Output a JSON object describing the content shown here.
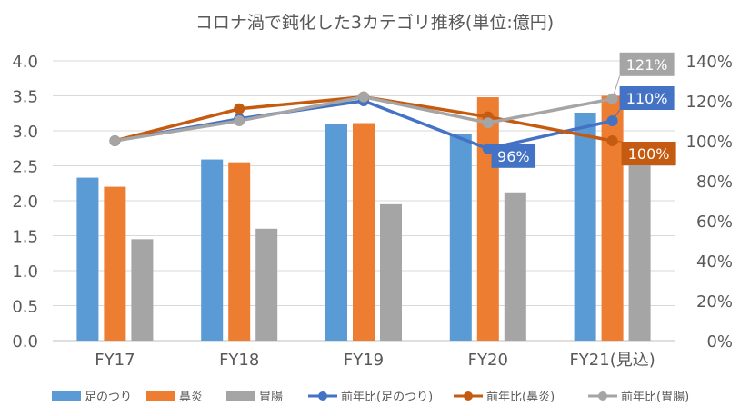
{
  "chart_data": {
    "type": "bar",
    "title": "コロナ渦で鈍化した3カテゴリ推移(単位:億円)",
    "categories": [
      "FY17",
      "FY18",
      "FY19",
      "FY20",
      "FY21(見込)"
    ],
    "ylim": [
      0,
      4.0
    ],
    "y_ticks": [
      "0.0",
      "0.5",
      "1.0",
      "1.5",
      "2.0",
      "2.5",
      "3.0",
      "3.5",
      "4.0"
    ],
    "y2lim": [
      0,
      140
    ],
    "y2_ticks": [
      "0%",
      "20%",
      "40%",
      "60%",
      "80%",
      "100%",
      "120%",
      "140%"
    ],
    "grid": true,
    "legend_position": "bottom",
    "bar_series": [
      {
        "name": "足のつり",
        "color": "#5b9bd5",
        "values": [
          2.33,
          2.59,
          3.1,
          2.96,
          3.26
        ]
      },
      {
        "name": "鼻炎",
        "color": "#ed7d31",
        "values": [
          2.2,
          2.55,
          3.11,
          3.48,
          3.5
        ]
      },
      {
        "name": "胃腸",
        "color": "#a5a5a5",
        "values": [
          1.45,
          1.6,
          1.95,
          2.12,
          2.57
        ]
      }
    ],
    "line_series": [
      {
        "name": "前年比(足のつり)",
        "color": "#4472c4",
        "values": [
          100,
          111,
          120,
          96,
          110
        ]
      },
      {
        "name": "前年比(鼻炎)",
        "color": "#c55a11",
        "values": [
          100,
          116,
          122,
          112,
          100
        ]
      },
      {
        "name": "前年比(胃腸)",
        "color": "#a5a5a5",
        "values": [
          100,
          110,
          122,
          109,
          121
        ]
      }
    ],
    "annotations": [
      {
        "series": 0,
        "index": 3,
        "text": "96%"
      },
      {
        "series": 0,
        "index": 4,
        "text": "110%"
      },
      {
        "series": 1,
        "index": 4,
        "text": "100%"
      },
      {
        "series": 2,
        "index": 4,
        "text": "121%"
      }
    ]
  }
}
